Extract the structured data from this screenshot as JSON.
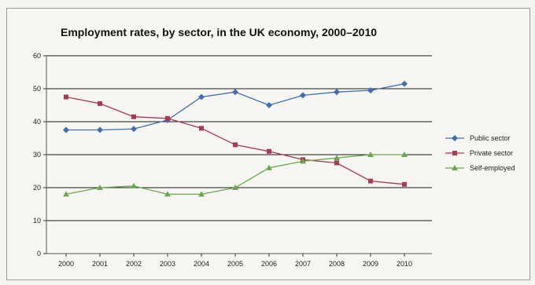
{
  "chart_data": {
    "type": "line",
    "title": "Employment rates, by sector, in the UK economy, 2000–2010",
    "xlabel": "",
    "ylabel": "",
    "x": [
      "2000",
      "2001",
      "2002",
      "2003",
      "2004",
      "2005",
      "2006",
      "2007",
      "2008",
      "2009",
      "2010"
    ],
    "ylim": [
      0,
      60
    ],
    "yticks": [
      0,
      10,
      20,
      30,
      40,
      50,
      60
    ],
    "grid": true,
    "legend_position": "right",
    "series": [
      {
        "name": "Public sector",
        "color": "#3f6fae",
        "marker": "diamond",
        "values": [
          37.5,
          37.5,
          37.8,
          40.5,
          47.5,
          49,
          45,
          48,
          49,
          49.5,
          51.5
        ]
      },
      {
        "name": "Private sector",
        "color": "#a83a52",
        "marker": "square",
        "values": [
          47.5,
          45.5,
          41.5,
          41,
          38,
          33,
          31,
          28.5,
          27.5,
          22,
          21
        ]
      },
      {
        "name": "Self-employed",
        "color": "#6aa84f",
        "marker": "triangle",
        "values": [
          18,
          20,
          20.5,
          18,
          18,
          20,
          26,
          28,
          29,
          30,
          30
        ]
      }
    ]
  }
}
